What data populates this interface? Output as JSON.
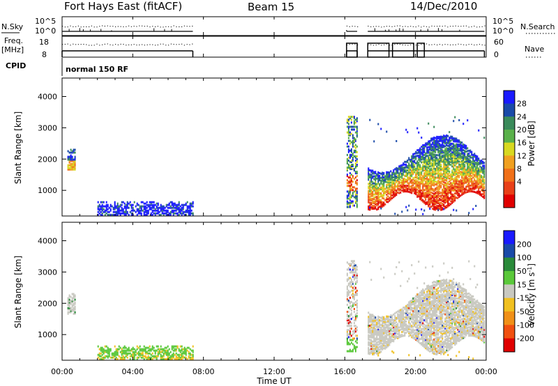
{
  "header": {
    "station": "Fort Hays East (fitACF)",
    "beam": "Beam 15",
    "date": "14/Dec/2010"
  },
  "strips": {
    "nsky_label": "N.Sky",
    "nsky_ticks": [
      "10^5",
      "10^0"
    ],
    "nsearch_label": "N.Search",
    "nsearch_ticks": [
      "10^5",
      "10^0"
    ],
    "freq_label_1": "Freq.",
    "freq_label_2": "[MHz]",
    "freq_ticks": [
      "18",
      "8"
    ],
    "nave_label": "Nave",
    "nave_ticks": [
      "60",
      "0"
    ],
    "cpid_label": "CPID",
    "cpid_value": "normal 150 RF"
  },
  "colors": {
    "power": [
      "#1a1aff",
      "#1a4aa8",
      "#3a8a5a",
      "#5ab04a",
      "#d8d820",
      "#f0a020",
      "#f07018",
      "#e84018",
      "#e00000"
    ],
    "velocity": [
      "#1a1aff",
      "#1a4aa8",
      "#2a8a3a",
      "#5ac83a",
      "#c8c8c0",
      "#f0c020",
      "#f09018",
      "#f05010",
      "#e00000"
    ]
  },
  "chart_data": [
    {
      "type": "heatmap",
      "panel": "power",
      "ylabel": "Slant Range [km]",
      "xlabel": "Time UT",
      "x_ticks": [
        "00:00",
        "04:00",
        "08:00",
        "12:00",
        "16:00",
        "20:00",
        "00:00"
      ],
      "y_ticks": [
        "1000",
        "2000",
        "3000",
        "4000"
      ],
      "ylim": [
        180,
        4590
      ],
      "xlim_hours": [
        0,
        24
      ],
      "colorbar_label": "Power [dB]",
      "colorbar_ticks": [
        "4",
        "8",
        "12",
        "16",
        "20",
        "24",
        "28"
      ],
      "data_windows_hours": [
        [
          0.3,
          1.2
        ],
        [
          2.0,
          7.4
        ],
        [
          16.1,
          16.7
        ],
        [
          17.3,
          23.9
        ]
      ]
    },
    {
      "type": "heatmap",
      "panel": "velocity",
      "ylabel": "Slant Range [km]",
      "xlabel": "Time UT",
      "x_ticks": [
        "00:00",
        "04:00",
        "08:00",
        "12:00",
        "16:00",
        "20:00",
        "00:00"
      ],
      "y_ticks": [
        "1000",
        "2000",
        "3000",
        "4000"
      ],
      "ylim": [
        180,
        4590
      ],
      "xlim_hours": [
        0,
        24
      ],
      "colorbar_label": "Velocity [m s^-1]",
      "colorbar_ticks": [
        "200",
        "100",
        "50",
        "15",
        "-15",
        "-50",
        "-100",
        "-200"
      ],
      "data_windows_hours": [
        [
          0.3,
          1.2
        ],
        [
          2.0,
          7.4
        ],
        [
          16.1,
          16.7
        ],
        [
          17.3,
          23.9
        ]
      ]
    }
  ],
  "axis": {
    "xlabel": "Time UT"
  }
}
